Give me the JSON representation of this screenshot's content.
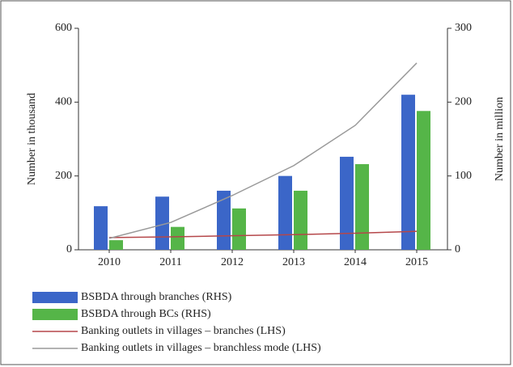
{
  "chart_data": {
    "type": "bar",
    "categories": [
      "2010",
      "2011",
      "2012",
      "2013",
      "2014",
      "2015"
    ],
    "ylabel": "Number in thousand",
    "y2label": "Number in million",
    "ylim": [
      0,
      600
    ],
    "yticks": [
      0,
      200,
      400,
      600
    ],
    "y2lim": [
      0,
      300
    ],
    "y2ticks": [
      0,
      100,
      200,
      300
    ],
    "series": [
      {
        "name": "BSBDA through branches (RHS)",
        "type": "bar",
        "axis": "y2",
        "color": "#3b66c8",
        "values": [
          59,
          72,
          80,
          100,
          126,
          210
        ]
      },
      {
        "name": "BSBDA through BCs (RHS)",
        "type": "bar",
        "axis": "y2",
        "color": "#55b548",
        "values": [
          13,
          31,
          56,
          80,
          116,
          188
        ]
      },
      {
        "name": "Banking outlets in villages – branches (LHS)",
        "type": "line",
        "color": "#b5474a",
        "values": [
          33,
          35,
          38,
          41,
          45,
          50
        ]
      },
      {
        "name": "Banking outlets in villages – branchless mode (LHS)",
        "type": "line",
        "color": "#999999",
        "values": [
          31,
          74,
          147,
          228,
          337,
          506
        ]
      }
    ]
  }
}
